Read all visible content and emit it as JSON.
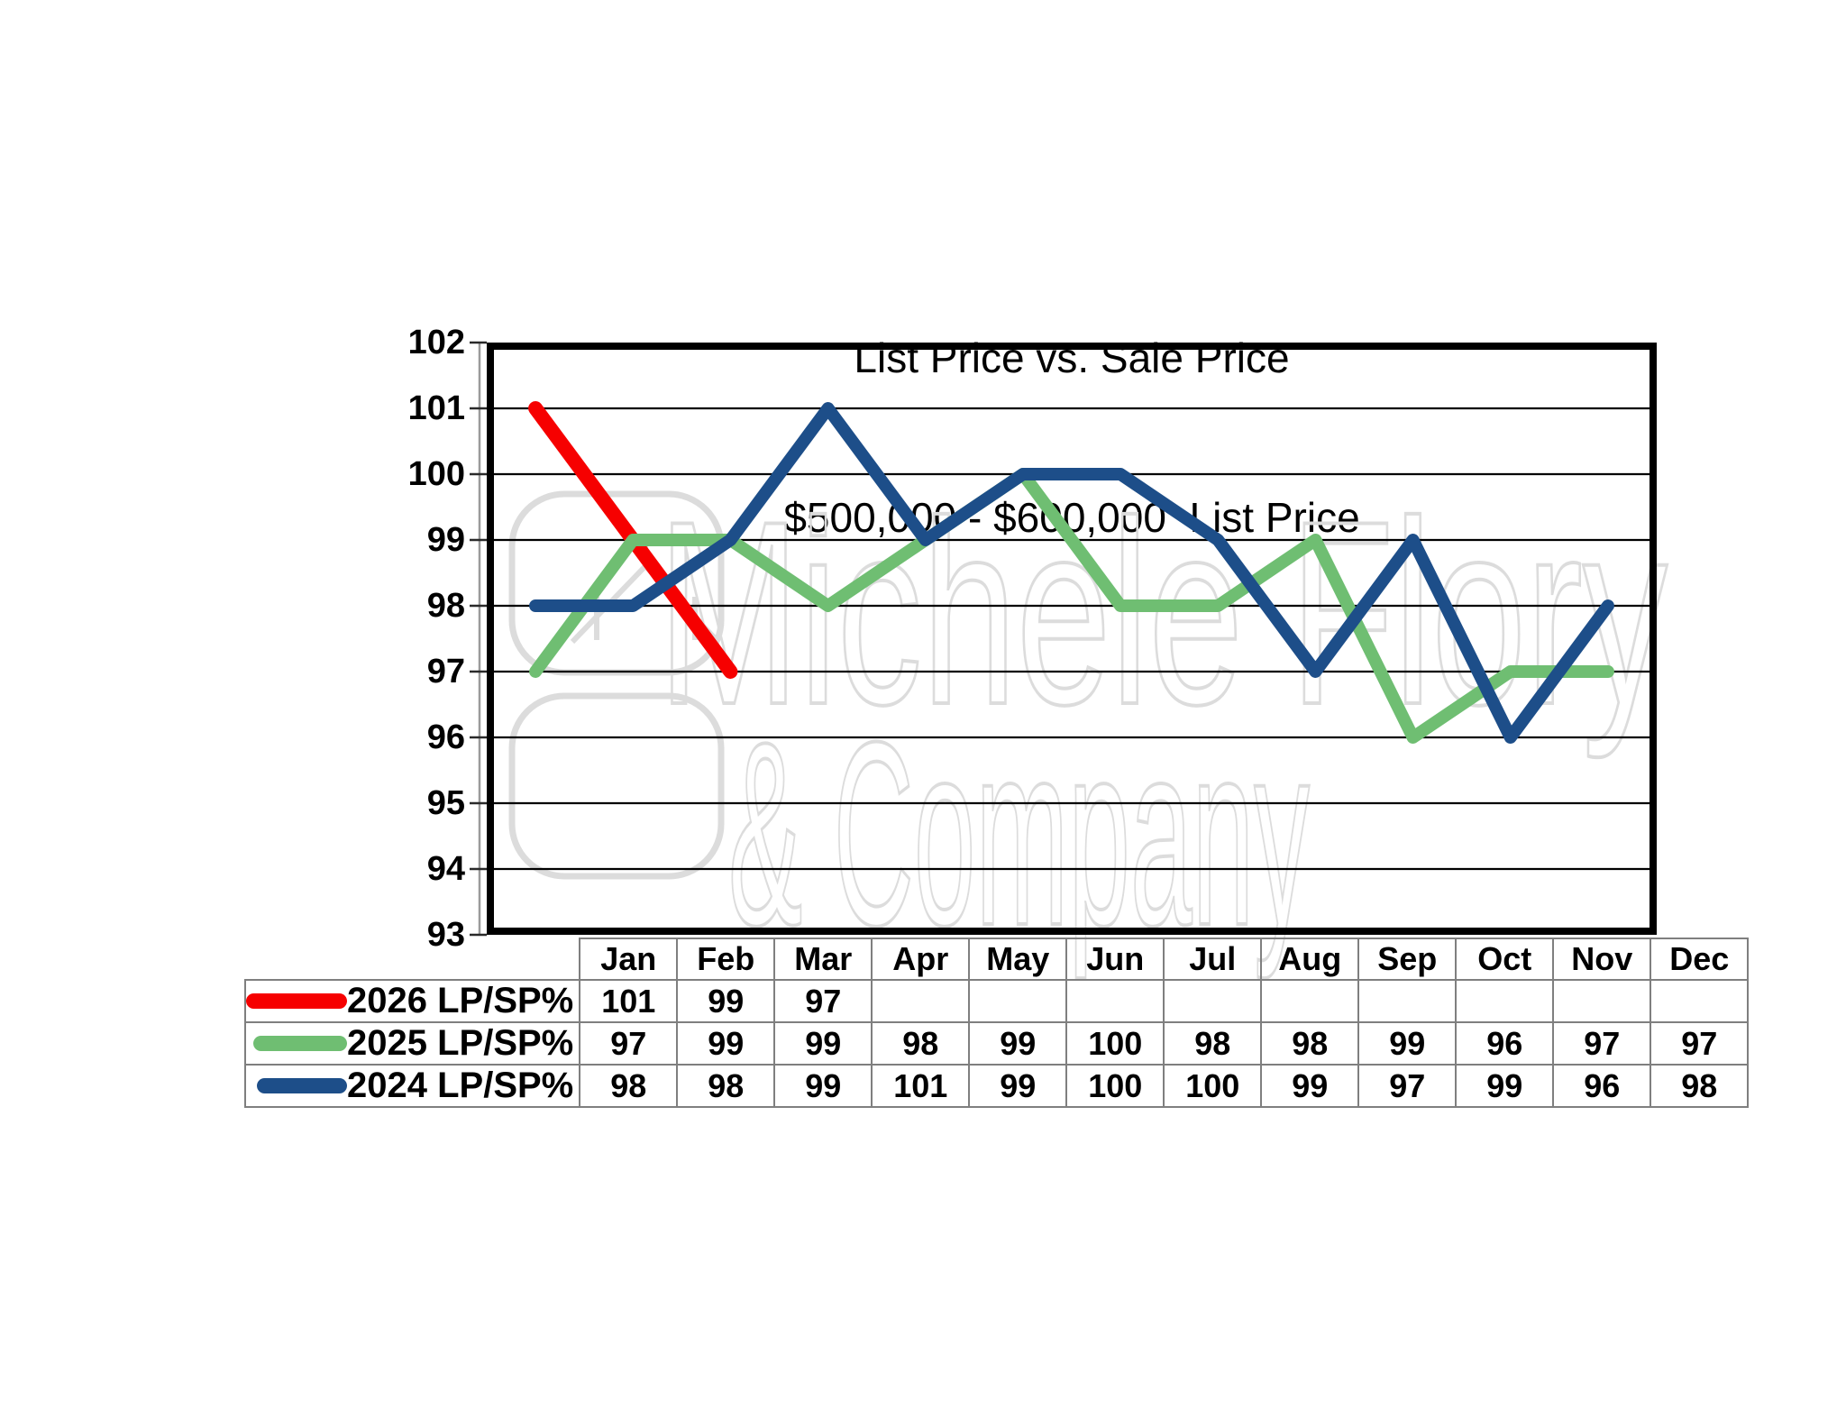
{
  "title": {
    "line1": "List Price vs. Sale Price",
    "line2": "$500,000 - $600,000  List Price"
  },
  "watermark": {
    "line1": "Michele Flory",
    "line2": "& Company",
    "color": "#dcdcdc"
  },
  "y_axis": {
    "min": 93,
    "max": 102,
    "ticks": [
      102,
      101,
      100,
      99,
      98,
      97,
      96,
      95,
      94,
      93
    ]
  },
  "months": [
    "Jan",
    "Feb",
    "Mar",
    "Apr",
    "May",
    "Jun",
    "Jul",
    "Aug",
    "Sep",
    "Oct",
    "Nov",
    "Dec"
  ],
  "series": [
    {
      "name": "2026 LP/SP%",
      "color": "#f60000",
      "marker_width": 112,
      "values": [
        101,
        99,
        97,
        null,
        null,
        null,
        null,
        null,
        null,
        null,
        null,
        null
      ]
    },
    {
      "name": "2025 LP/SP%",
      "color": "#6fbe72",
      "marker_width": 104,
      "values": [
        97,
        99,
        99,
        98,
        99,
        100,
        98,
        98,
        99,
        96,
        97,
        97
      ]
    },
    {
      "name": "2024 LP/SP%",
      "color": "#1d4e89",
      "marker_width": 100,
      "values": [
        98,
        98,
        99,
        101,
        99,
        100,
        100,
        99,
        97,
        99,
        96,
        98
      ]
    }
  ],
  "chart_data": {
    "type": "line",
    "title": "List Price vs. Sale Price $500,000 - $600,000 List Price",
    "categories": [
      "Jan",
      "Feb",
      "Mar",
      "Apr",
      "May",
      "Jun",
      "Jul",
      "Aug",
      "Sep",
      "Oct",
      "Nov",
      "Dec"
    ],
    "series": [
      {
        "name": "2026 LP/SP%",
        "color": "#f60000",
        "values": [
          101,
          99,
          97,
          null,
          null,
          null,
          null,
          null,
          null,
          null,
          null,
          null
        ]
      },
      {
        "name": "2025 LP/SP%",
        "color": "#6fbe72",
        "values": [
          97,
          99,
          99,
          98,
          99,
          100,
          98,
          98,
          99,
          96,
          97,
          97
        ]
      },
      {
        "name": "2024 LP/SP%",
        "color": "#1d4e89",
        "values": [
          98,
          98,
          99,
          101,
          99,
          100,
          100,
          99,
          97,
          99,
          96,
          98
        ]
      }
    ],
    "xlabel": "",
    "ylabel": "",
    "ylim": [
      93,
      102
    ],
    "grid": true,
    "legend_position": "table-left"
  }
}
